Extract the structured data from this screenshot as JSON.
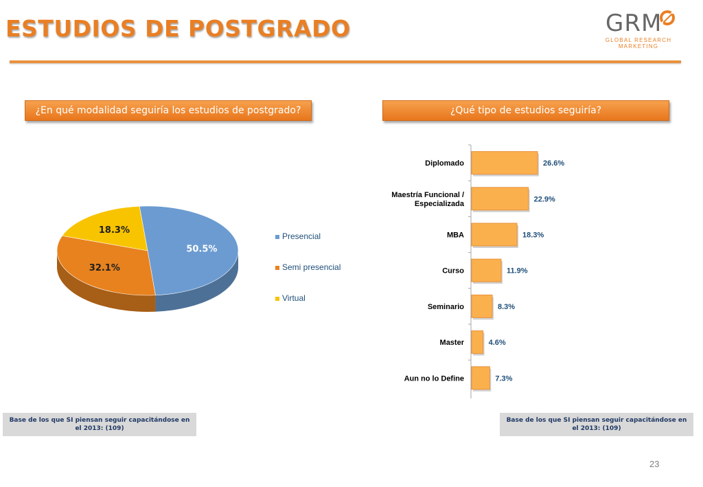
{
  "header": {
    "title": "ESTUDIOS DE POSTGRADO",
    "logo_text": "GRM",
    "logo_sub_1": "GLOBAL RESEARCH",
    "logo_sub_2": "MARKETING"
  },
  "left_panel": {
    "question": "¿En qué modalidad seguiría los estudios de postgrado?",
    "footnote": "Base de los que SI piensan seguir capacitándose en el 2013: (109)"
  },
  "right_panel": {
    "question": "¿Qué tipo de estudios seguiría?",
    "footnote": "Base de los que SI piensan seguir capacitándose en el 2013: (109)"
  },
  "page_number": "23",
  "chart_data": [
    {
      "type": "pie",
      "categories": [
        "Presencial",
        "Semi presencial",
        "Virtual"
      ],
      "values": [
        50.5,
        32.1,
        18.3
      ],
      "labels": [
        "50.5%",
        "32.1%",
        "18.3%"
      ],
      "colors": [
        "#6b9bd1",
        "#e8821e",
        "#f8c400"
      ],
      "legend_position": "right"
    },
    {
      "type": "bar",
      "orientation": "horizontal",
      "categories": [
        "Diplomado",
        "Maestría Funcional / Especializada",
        "MBA",
        "Curso",
        "Seminario",
        "Master",
        "Aun no lo Define"
      ],
      "values": [
        26.6,
        22.9,
        18.3,
        11.9,
        8.3,
        4.6,
        7.3
      ],
      "labels": [
        "26.6%",
        "22.9%",
        "18.3%",
        "11.9%",
        "8.3%",
        "4.6%",
        "7.3%"
      ],
      "bar_color": "#fbb04e",
      "grid": false
    }
  ]
}
